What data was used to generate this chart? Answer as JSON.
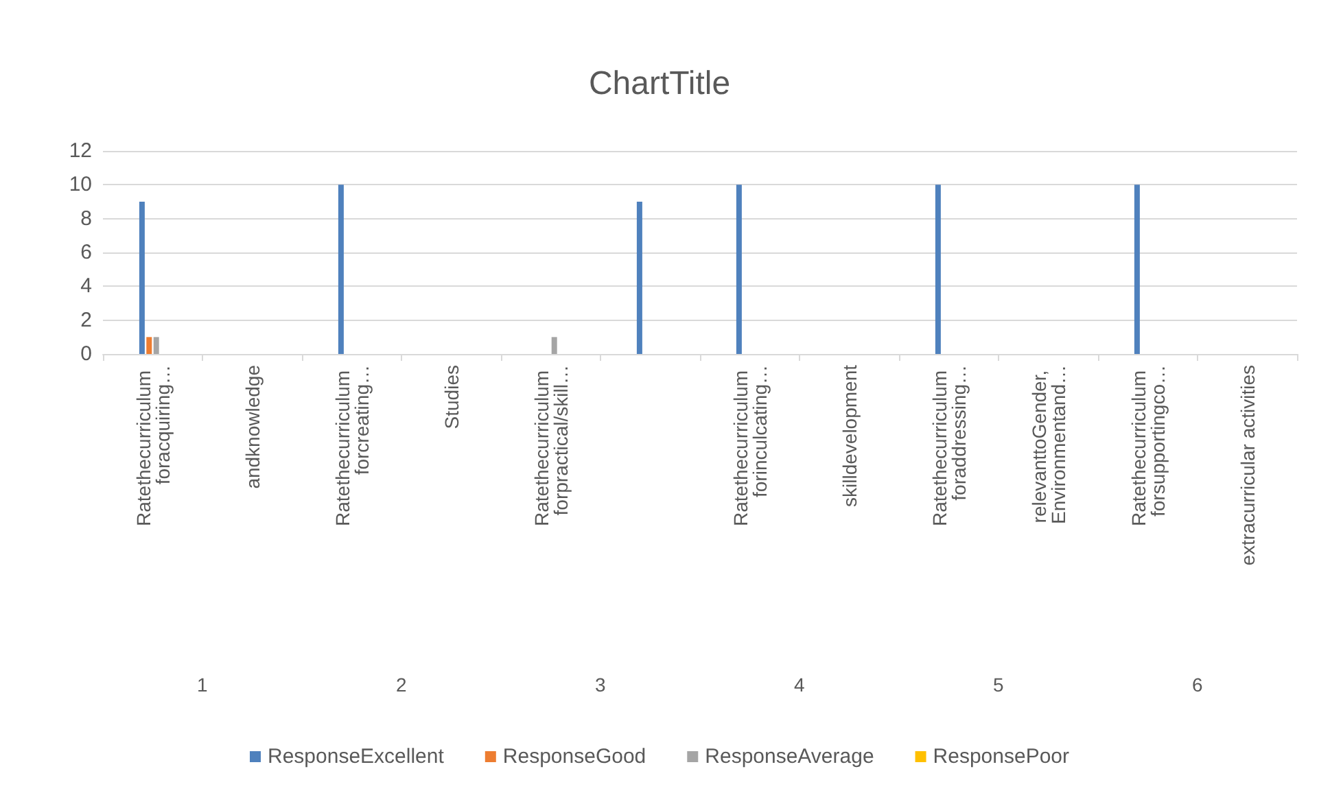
{
  "chart_data": {
    "type": "bar",
    "title": "ChartTitle",
    "categories": [
      "Ratethecurriculum foracquiring…",
      "andknowledge",
      "Ratethecurriculum forcreating…",
      "Studies",
      "Ratethecurriculum forpractical/skill…",
      null,
      "Ratethecurriculum forinculcating…",
      "skilldevelopment",
      "Ratethecurriculum foraddressing…",
      "relevanttoGender, Environmentand…",
      "Ratethecurriculum forsupportingco…",
      "extracurricular activities"
    ],
    "series": [
      {
        "name": "ResponseExcellent",
        "color": "#4f81bd",
        "values": [
          9,
          null,
          10,
          null,
          null,
          9,
          10,
          null,
          10,
          null,
          10,
          null
        ]
      },
      {
        "name": "ResponseGood",
        "color": "#ed7d31",
        "values": [
          1,
          null,
          null,
          null,
          null,
          null,
          null,
          null,
          null,
          null,
          null,
          null
        ]
      },
      {
        "name": "ResponseAverage",
        "color": "#a5a5a5",
        "values": [
          1,
          null,
          null,
          null,
          1,
          null,
          null,
          null,
          null,
          null,
          null,
          null
        ]
      },
      {
        "name": "ResponsePoor",
        "color": "#ffc000",
        "values": [
          null,
          null,
          null,
          null,
          null,
          null,
          null,
          null,
          null,
          null,
          null,
          null
        ]
      }
    ],
    "annotations": [
      "1",
      "2",
      "3",
      "4",
      "5",
      "6"
    ],
    "ylim": [
      0,
      12
    ],
    "yticks": [
      0,
      2,
      4,
      6,
      8,
      10,
      12
    ],
    "grid": "y",
    "legend": "bottom"
  }
}
